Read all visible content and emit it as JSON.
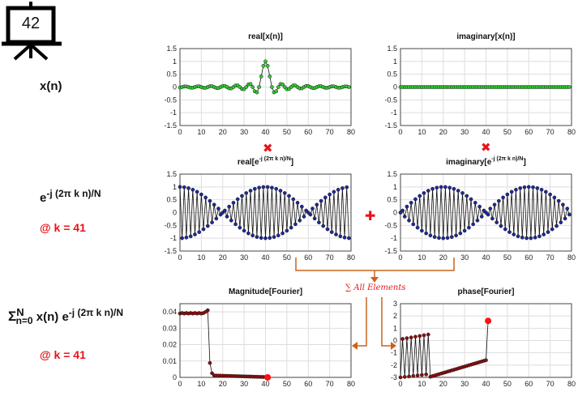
{
  "slide_number": "42",
  "row_labels": {
    "signal": "x(n)",
    "basis_base": "e",
    "basis_exp": "-j (2π k n)/N",
    "basis_at": "@ k = 41",
    "sum_sigma": "Σ",
    "sum_upper": "N",
    "sum_lower": "n=0",
    "sum_body": "x(n) e",
    "sum_exp": "-j (2π k n)/N",
    "sum_at": "@ k = 41"
  },
  "operators": {
    "multiply": "✖",
    "add": "✚",
    "sum_note": "∑ All Elements"
  },
  "colors": {
    "green_marker": "#33cc33",
    "blue_marker": "#1f2a9a",
    "red_marker": "#8b1010",
    "highlight": "#ff1010",
    "operator_red": "#e8141b",
    "arrow_orange": "#c8641e"
  },
  "chart_data": [
    {
      "type": "line",
      "title": "real[x(n)]",
      "xlim": [
        0,
        80
      ],
      "ylim": [
        -1.5,
        1.5
      ],
      "xticks": [
        0,
        10,
        20,
        30,
        40,
        50,
        60,
        70,
        80
      ],
      "yticks": [
        -1.5,
        -1,
        -0.5,
        0,
        0.5,
        1,
        1.5
      ],
      "series": [
        {
          "marker_color": "green",
          "function": "sinc pulse centered at n=40, peak 1",
          "n_points": 80
        }
      ]
    },
    {
      "type": "line",
      "title": "imaginary[x(n)]",
      "xlim": [
        0,
        80
      ],
      "ylim": [
        -1.5,
        1.5
      ],
      "xticks": [
        0,
        10,
        20,
        30,
        40,
        50,
        60,
        70,
        80
      ],
      "yticks": [
        -1.5,
        -1,
        -0.5,
        0,
        0.5,
        1,
        1.5
      ],
      "series": [
        {
          "marker_color": "green",
          "function": "zero",
          "n_points": 80
        }
      ]
    },
    {
      "type": "line",
      "title": "real[e^-j (2π k n)/N]",
      "xlim": [
        0,
        80
      ],
      "ylim": [
        -1.5,
        1.5
      ],
      "xticks": [
        0,
        10,
        20,
        30,
        40,
        50,
        60,
        70,
        80
      ],
      "yticks": [
        -1.5,
        -1,
        -0.5,
        0,
        0.5,
        1,
        1.5
      ],
      "series": [
        {
          "marker_color": "blue",
          "function": "cos(2π·41·n/80)",
          "n_points": 80
        }
      ]
    },
    {
      "type": "line",
      "title": "imaginary[e^-j (2π k n)/N]",
      "xlim": [
        0,
        80
      ],
      "ylim": [
        -1.5,
        1.5
      ],
      "xticks": [
        0,
        10,
        20,
        30,
        40,
        50,
        60,
        70,
        80
      ],
      "yticks": [
        -1.5,
        -1,
        -0.5,
        0,
        0.5,
        1,
        1.5
      ],
      "series": [
        {
          "marker_color": "blue",
          "function": "-sin(2π·41·n/80)",
          "n_points": 80
        }
      ]
    },
    {
      "type": "line",
      "title": "Magnitude[Fourier]",
      "xlim": [
        0,
        80
      ],
      "ylim": [
        0,
        0.045
      ],
      "xticks": [
        0,
        10,
        20,
        30,
        40,
        50,
        60,
        70,
        80
      ],
      "yticks": [
        0,
        0.01,
        0.02,
        0.03,
        0.04
      ],
      "series": [
        {
          "marker_color": "dark red",
          "function": "lowpass spectrum, ~0.04 for k≤13, ~0 beyond",
          "shown_k": [
            0,
            41
          ],
          "highlight_k": 41,
          "highlight_value": 0
        }
      ]
    },
    {
      "type": "line",
      "title": "phase[Fourier]",
      "xlim": [
        0,
        80
      ],
      "ylim": [
        -3,
        3
      ],
      "xticks": [
        0,
        10,
        20,
        30,
        40,
        50,
        60,
        70,
        80
      ],
      "yticks": [
        -3,
        -2,
        -1,
        0,
        1,
        2,
        3
      ],
      "series": [
        {
          "marker_color": "dark red",
          "function": "alternating phase for k≤13, linear ramp -3→-1.6 for 14≤k≤40",
          "shown_k": [
            0,
            41
          ],
          "highlight_k": 41,
          "highlight_value": 1.6
        }
      ]
    }
  ]
}
